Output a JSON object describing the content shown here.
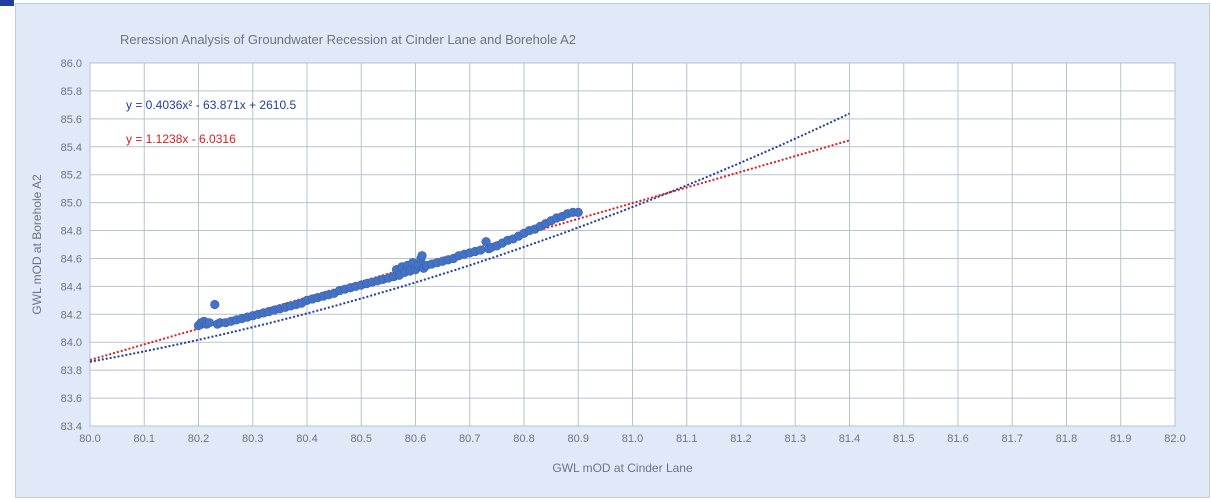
{
  "chart_data": {
    "type": "scatter",
    "title": "Reression Analysis of Groundwater Recession at Cinder Lane and Borehole A2",
    "xlabel": "GWL mOD at Cinder Lane",
    "ylabel": "GWL mOD at Borehole A2",
    "xlim": [
      80.0,
      82.0
    ],
    "ylim": [
      83.4,
      86.0
    ],
    "x_ticks": [
      "80.0",
      "80.1",
      "80.2",
      "80.3",
      "80.4",
      "80.5",
      "80.6",
      "80.7",
      "80.8",
      "80.9",
      "81.0",
      "81.1",
      "81.2",
      "81.3",
      "81.4",
      "81.5",
      "81.6",
      "81.7",
      "81.8",
      "81.9",
      "82.0"
    ],
    "y_ticks": [
      "86.0",
      "85.8",
      "85.6",
      "85.4",
      "85.2",
      "85.0",
      "84.8",
      "84.6",
      "84.4",
      "84.2",
      "84.0",
      "83.8",
      "83.6",
      "83.4"
    ],
    "grid": true,
    "trendlines": [
      {
        "type": "polynomial",
        "coefficients": [
          0.4036,
          -63.871,
          2610.5
        ],
        "label": "y = 0.4036x² - 63.871x + 2610.5",
        "color": "#1f3d99",
        "x_range": [
          80.0,
          81.4
        ]
      },
      {
        "type": "linear",
        "coefficients": [
          1.1238,
          -6.0316
        ],
        "label": "y = 1.1238x - 6.0316",
        "color": "#d42020",
        "x_range": [
          80.0,
          81.4
        ]
      }
    ],
    "points_color": "#4472c4",
    "points": [
      [
        80.2,
        84.12
      ],
      [
        80.205,
        84.14
      ],
      [
        80.21,
        84.15
      ],
      [
        80.215,
        84.13
      ],
      [
        80.22,
        84.14
      ],
      [
        80.23,
        84.27
      ],
      [
        80.235,
        84.13
      ],
      [
        80.24,
        84.14
      ],
      [
        80.25,
        84.14
      ],
      [
        80.26,
        84.15
      ],
      [
        80.27,
        84.16
      ],
      [
        80.28,
        84.17
      ],
      [
        80.29,
        84.18
      ],
      [
        80.3,
        84.19
      ],
      [
        80.31,
        84.2
      ],
      [
        80.32,
        84.21
      ],
      [
        80.33,
        84.22
      ],
      [
        80.34,
        84.23
      ],
      [
        80.35,
        84.24
      ],
      [
        80.36,
        84.25
      ],
      [
        80.37,
        84.26
      ],
      [
        80.38,
        84.27
      ],
      [
        80.39,
        84.28
      ],
      [
        80.4,
        84.3
      ],
      [
        80.41,
        84.31
      ],
      [
        80.42,
        84.32
      ],
      [
        80.43,
        84.33
      ],
      [
        80.44,
        84.34
      ],
      [
        80.45,
        84.35
      ],
      [
        80.46,
        84.37
      ],
      [
        80.47,
        84.38
      ],
      [
        80.48,
        84.39
      ],
      [
        80.49,
        84.4
      ],
      [
        80.5,
        84.41
      ],
      [
        80.51,
        84.42
      ],
      [
        80.52,
        84.43
      ],
      [
        80.53,
        84.44
      ],
      [
        80.54,
        84.45
      ],
      [
        80.55,
        84.46
      ],
      [
        80.56,
        84.47
      ],
      [
        80.565,
        84.52
      ],
      [
        80.57,
        84.48
      ],
      [
        80.575,
        84.54
      ],
      [
        80.58,
        84.5
      ],
      [
        80.585,
        84.55
      ],
      [
        80.59,
        84.51
      ],
      [
        80.595,
        84.57
      ],
      [
        80.6,
        84.52
      ],
      [
        80.605,
        84.55
      ],
      [
        80.61,
        84.6
      ],
      [
        80.612,
        84.62
      ],
      [
        80.615,
        84.53
      ],
      [
        80.62,
        84.55
      ],
      [
        80.63,
        84.56
      ],
      [
        80.64,
        84.57
      ],
      [
        80.65,
        84.58
      ],
      [
        80.66,
        84.59
      ],
      [
        80.67,
        84.6
      ],
      [
        80.68,
        84.62
      ],
      [
        80.69,
        84.63
      ],
      [
        80.7,
        84.64
      ],
      [
        80.71,
        84.65
      ],
      [
        80.72,
        84.66
      ],
      [
        80.73,
        84.72
      ],
      [
        80.735,
        84.67
      ],
      [
        80.74,
        84.68
      ],
      [
        80.75,
        84.69
      ],
      [
        80.76,
        84.71
      ],
      [
        80.77,
        84.73
      ],
      [
        80.78,
        84.74
      ],
      [
        80.79,
        84.76
      ],
      [
        80.8,
        84.78
      ],
      [
        80.81,
        84.8
      ],
      [
        80.82,
        84.81
      ],
      [
        80.83,
        84.83
      ],
      [
        80.84,
        84.85
      ],
      [
        80.85,
        84.87
      ],
      [
        80.86,
        84.89
      ],
      [
        80.87,
        84.9
      ],
      [
        80.88,
        84.92
      ],
      [
        80.89,
        84.93
      ],
      [
        80.9,
        84.93
      ]
    ]
  }
}
